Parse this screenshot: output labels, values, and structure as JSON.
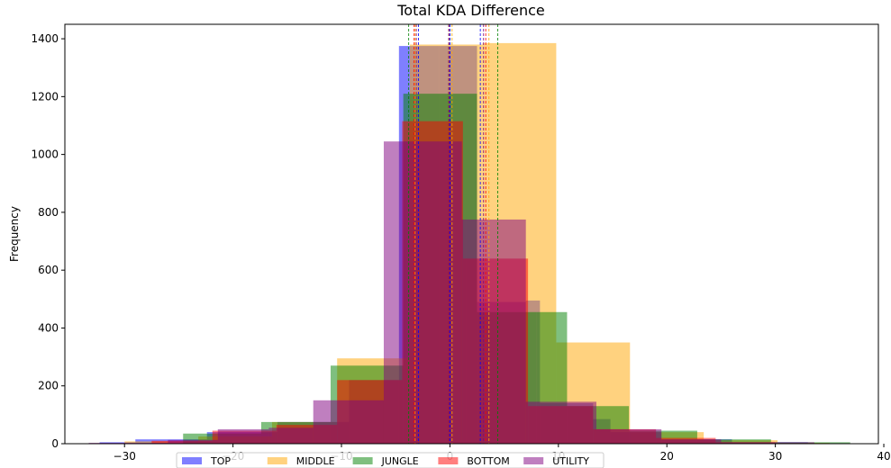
{
  "chart_data": {
    "type": "bar",
    "title": "Total KDA Difference",
    "xlabel": "",
    "ylabel": "Frequency",
    "xlim": [
      -35.5,
      39.5
    ],
    "ylim": [
      0,
      1450
    ],
    "x_ticks": [
      -30,
      -20,
      -10,
      0,
      10,
      20,
      30,
      40
    ],
    "x_tick_labels": [
      "−30",
      "−20",
      "−10",
      "0",
      "10",
      "20",
      "30",
      "40"
    ],
    "y_ticks": [
      0,
      200,
      400,
      600,
      800,
      1000,
      1200,
      1400
    ],
    "y_tick_labels": [
      "0",
      "200",
      "400",
      "600",
      "800",
      "1000",
      "1200",
      "1400"
    ],
    "grid": false,
    "legend_position": "bottom-center",
    "bar_alpha": 0.5,
    "series": [
      {
        "name": "TOP",
        "color": "#0000ff",
        "bins": [
          [
            -32.3,
            -29.0,
            5
          ],
          [
            -29.0,
            -22.4,
            15
          ],
          [
            -22.4,
            -15.9,
            40
          ],
          [
            -15.9,
            -9.3,
            75
          ],
          [
            -9.3,
            -4.7,
            220
          ],
          [
            -4.7,
            -1.0,
            1375
          ],
          [
            -1.0,
            2.5,
            1375
          ],
          [
            2.5,
            7.0,
            490
          ],
          [
            7.0,
            8.3,
            495
          ],
          [
            8.3,
            13.2,
            140
          ],
          [
            13.2,
            14.8,
            85
          ],
          [
            14.8,
            19.5,
            40
          ],
          [
            19.5,
            26.0,
            15
          ],
          [
            26.0,
            33.0,
            5
          ]
        ],
        "mean": 0.0,
        "std_lines": [
          -2.9,
          2.8
        ]
      },
      {
        "name": "MIDDLE",
        "color": "#ffa500",
        "bins": [
          [
            -30.0,
            -23.2,
            8
          ],
          [
            -23.2,
            -16.4,
            25
          ],
          [
            -16.4,
            -10.4,
            75
          ],
          [
            -10.4,
            -3.7,
            295
          ],
          [
            -3.7,
            3.0,
            1380
          ],
          [
            3.0,
            9.8,
            1385
          ],
          [
            9.8,
            16.6,
            350
          ],
          [
            16.6,
            23.4,
            40
          ],
          [
            23.4,
            30.2,
            12
          ],
          [
            30.2,
            35.0,
            3
          ]
        ],
        "mean": 0.2,
        "std_lines": [
          -3.2,
          3.6
        ]
      },
      {
        "name": "JUNGLE",
        "color": "#008000",
        "bins": [
          [
            -24.6,
            -17.4,
            35
          ],
          [
            -17.4,
            -11.0,
            75
          ],
          [
            -11.0,
            -4.3,
            270
          ],
          [
            -4.3,
            1.5,
            1210
          ],
          [
            1.5,
            2.5,
            1210
          ],
          [
            2.5,
            8.0,
            455
          ],
          [
            8.0,
            10.8,
            455
          ],
          [
            10.8,
            16.5,
            130
          ],
          [
            16.5,
            22.8,
            45
          ],
          [
            22.8,
            29.6,
            15
          ],
          [
            29.6,
            36.9,
            5
          ]
        ],
        "mean": -0.1,
        "std_lines": [
          -3.8,
          4.4
        ]
      },
      {
        "name": "BOTTOM",
        "color": "#ff0000",
        "bins": [
          [
            -27.5,
            -21.9,
            10
          ],
          [
            -21.9,
            -16.0,
            45
          ],
          [
            -16.0,
            -10.4,
            65
          ],
          [
            -10.4,
            -4.4,
            220
          ],
          [
            -4.4,
            1.2,
            1115
          ],
          [
            1.2,
            7.2,
            640
          ],
          [
            7.2,
            13.2,
            130
          ],
          [
            13.2,
            19.0,
            50
          ],
          [
            19.0,
            24.5,
            20
          ],
          [
            24.5,
            30.0,
            5
          ]
        ],
        "mean": -0.1,
        "std_lines": [
          -3.3,
          3.3
        ]
      },
      {
        "name": "UTILITY",
        "color": "#800080",
        "bins": [
          [
            -33.3,
            -26.0,
            3
          ],
          [
            -26.0,
            -21.4,
            13
          ],
          [
            -21.4,
            -16.7,
            50
          ],
          [
            -16.7,
            -12.6,
            55
          ],
          [
            -12.6,
            -6.1,
            150
          ],
          [
            -6.1,
            1.1,
            1045
          ],
          [
            1.1,
            7.0,
            775
          ],
          [
            7.0,
            13.5,
            145
          ],
          [
            13.5,
            19.5,
            50
          ],
          [
            19.5,
            25.0,
            15
          ],
          [
            25.0,
            33.6,
            5
          ]
        ],
        "mean": -0.1,
        "std_lines": [
          -3.1,
          3.1
        ]
      }
    ]
  }
}
